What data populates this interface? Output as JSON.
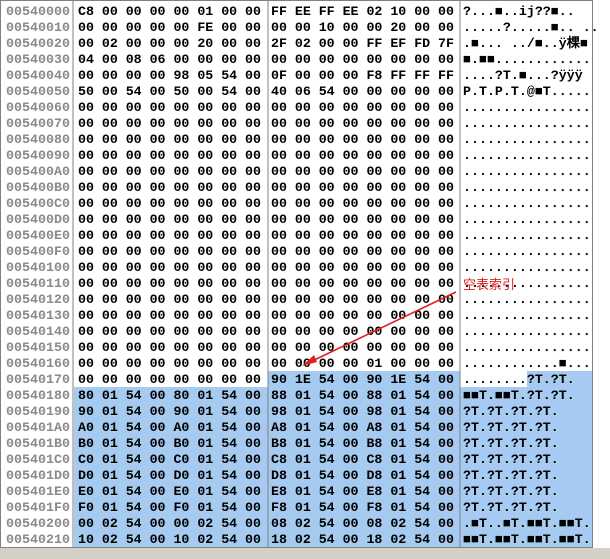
{
  "hex_view": {
    "rows": [
      {
        "address": "00540000",
        "hex": [
          "C8 00 00 00 00 01 00 00",
          "FF EE FF EE 02 10 00 00"
        ],
        "ascii": "?...■..ij??■.."
      },
      {
        "address": "00540010",
        "hex": [
          "00 00 00 00 00 FE 00 00",
          "00 00 10 00 00 20 00 00"
        ],
        "ascii": ".....?.....■.. .."
      },
      {
        "address": "00540020",
        "hex": [
          "00 02 00 00 00 20 00 00",
          "2F 02 00 00 FF EF FD 7F"
        ],
        "ascii": ".■... ../■..ÿ棵■"
      },
      {
        "address": "00540030",
        "hex": [
          "04 00 08 06 00 00 00 00",
          "00 00 00 00 00 00 00 00"
        ],
        "ascii": "■.■■............"
      },
      {
        "address": "00540040",
        "hex": [
          "00 00 00 00 98 05 54 00",
          "0F 00 00 00 F8 FF FF FF"
        ],
        "ascii": "....?T.■...?ÿÿÿ"
      },
      {
        "address": "00540050",
        "hex": [
          "50 00 54 00 50 00 54 00",
          "40 06 54 00 00 00 00 00"
        ],
        "ascii": "P.T.P.T.@■T....."
      },
      {
        "address": "00540060",
        "hex": [
          "00 00 00 00 00 00 00 00",
          "00 00 00 00 00 00 00 00"
        ],
        "ascii": "................"
      },
      {
        "address": "00540070",
        "hex": [
          "00 00 00 00 00 00 00 00",
          "00 00 00 00 00 00 00 00"
        ],
        "ascii": "................"
      },
      {
        "address": "00540080",
        "hex": [
          "00 00 00 00 00 00 00 00",
          "00 00 00 00 00 00 00 00"
        ],
        "ascii": "................"
      },
      {
        "address": "00540090",
        "hex": [
          "00 00 00 00 00 00 00 00",
          "00 00 00 00 00 00 00 00"
        ],
        "ascii": "................"
      },
      {
        "address": "005400A0",
        "hex": [
          "00 00 00 00 00 00 00 00",
          "00 00 00 00 00 00 00 00"
        ],
        "ascii": "................"
      },
      {
        "address": "005400B0",
        "hex": [
          "00 00 00 00 00 00 00 00",
          "00 00 00 00 00 00 00 00"
        ],
        "ascii": "................"
      },
      {
        "address": "005400C0",
        "hex": [
          "00 00 00 00 00 00 00 00",
          "00 00 00 00 00 00 00 00"
        ],
        "ascii": "................"
      },
      {
        "address": "005400D0",
        "hex": [
          "00 00 00 00 00 00 00 00",
          "00 00 00 00 00 00 00 00"
        ],
        "ascii": "................"
      },
      {
        "address": "005400E0",
        "hex": [
          "00 00 00 00 00 00 00 00",
          "00 00 00 00 00 00 00 00"
        ],
        "ascii": "................"
      },
      {
        "address": "005400F0",
        "hex": [
          "00 00 00 00 00 00 00 00",
          "00 00 00 00 00 00 00 00"
        ],
        "ascii": "................"
      },
      {
        "address": "00540100",
        "hex": [
          "00 00 00 00 00 00 00 00",
          "00 00 00 00 00 00 00 00"
        ],
        "ascii": "................"
      },
      {
        "address": "00540110",
        "hex": [
          "00 00 00 00 00 00 00 00",
          "00 00 00 00 00 00 00 00"
        ],
        "ascii": "................"
      },
      {
        "address": "00540120",
        "hex": [
          "00 00 00 00 00 00 00 00",
          "00 00 00 00 00 00 00 00"
        ],
        "ascii": "................"
      },
      {
        "address": "00540130",
        "hex": [
          "00 00 00 00 00 00 00 00",
          "00 00 00 00 00 00 00 00"
        ],
        "ascii": "................"
      },
      {
        "address": "00540140",
        "hex": [
          "00 00 00 00 00 00 00 00",
          "00 00 00 00 00 00 00 00"
        ],
        "ascii": "................"
      },
      {
        "address": "00540150",
        "hex": [
          "00 00 00 00 00 00 00 00",
          "00 00 00 00 00 00 00 00"
        ],
        "ascii": "................"
      },
      {
        "address": "00540160",
        "hex": [
          "00 00 00 00 00 00 00 00",
          "00 00 00 00 01 00 00 00"
        ],
        "ascii": "............■..."
      },
      {
        "address": "00540170",
        "hex": [
          "00 00 00 00 00 00 00 00",
          "90 1E 54 00 90 1E 54 00"
        ],
        "ascii": "........?T.?T."
      },
      {
        "address": "00540180",
        "hex": [
          "80 01 54 00 80 01 54 00",
          "88 01 54 00 88 01 54 00"
        ],
        "ascii": "■■T.■■T.?T.?T."
      },
      {
        "address": "00540190",
        "hex": [
          "90 01 54 00 90 01 54 00",
          "98 01 54 00 98 01 54 00"
        ],
        "ascii": "?T.?T.?T.?T."
      },
      {
        "address": "005401A0",
        "hex": [
          "A0 01 54 00 A0 01 54 00",
          "A8 01 54 00 A8 01 54 00"
        ],
        "ascii": "?T.?T.?T.?T."
      },
      {
        "address": "005401B0",
        "hex": [
          "B0 01 54 00 B0 01 54 00",
          "B8 01 54 00 B8 01 54 00"
        ],
        "ascii": "?T.?T.?T.?T."
      },
      {
        "address": "005401C0",
        "hex": [
          "C0 01 54 00 C0 01 54 00",
          "C8 01 54 00 C8 01 54 00"
        ],
        "ascii": "?T.?T.?T.?T."
      },
      {
        "address": "005401D0",
        "hex": [
          "D0 01 54 00 D0 01 54 00",
          "D8 01 54 00 D8 01 54 00"
        ],
        "ascii": "?T.?T.?T.?T."
      },
      {
        "address": "005401E0",
        "hex": [
          "E0 01 54 00 E0 01 54 00",
          "E8 01 54 00 E8 01 54 00"
        ],
        "ascii": "?T.?T.?T.?T."
      },
      {
        "address": "005401F0",
        "hex": [
          "F0 01 54 00 F0 01 54 00",
          "F8 01 54 00 F8 01 54 00"
        ],
        "ascii": "?T.?T.?T.?T."
      },
      {
        "address": "00540200",
        "hex": [
          "00 02 54 00 00 02 54 00",
          "08 02 54 00 08 02 54 00"
        ],
        "ascii": ".■T..■T.■■T.■■T."
      },
      {
        "address": "00540210",
        "hex": [
          "10 02 54 00 10 02 54 00",
          "18 02 54 00 18 02 54 00"
        ],
        "ascii": "■■T.■■T.■■T.■■T."
      }
    ],
    "annotation": "空表索引"
  }
}
